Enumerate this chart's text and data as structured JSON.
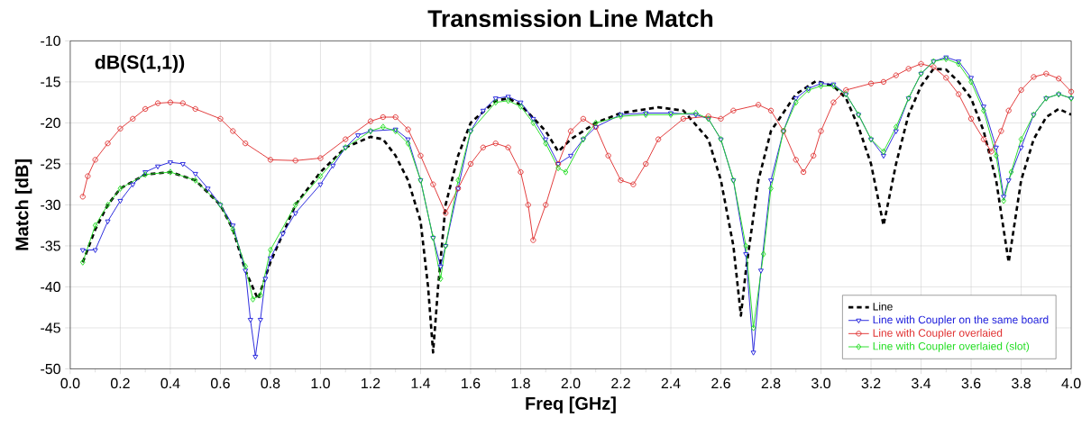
{
  "chart_data": {
    "type": "line",
    "title": "Transmission Line Match",
    "xlabel": "Freq [GHz]",
    "ylabel": "Match [dB]",
    "annotations": [
      "dB(S(1,1))"
    ],
    "xlim": [
      0,
      4
    ],
    "xticks": [
      {
        "value": 0,
        "label": "0.0"
      },
      0.2,
      0.4,
      0.6,
      0.8,
      {
        "value": 1,
        "label": "1.0"
      },
      1.2,
      1.4,
      1.6,
      1.8,
      {
        "value": 2,
        "label": "2.0"
      },
      2.2,
      2.4,
      2.6,
      2.8,
      {
        "value": 3,
        "label": "3.0"
      },
      3.2,
      3.4,
      3.6,
      3.8,
      {
        "value": 4,
        "label": "4.0"
      }
    ],
    "ylim": [
      -50,
      -10
    ],
    "yticks": [
      -50,
      -45,
      -40,
      -35,
      -30,
      -25,
      -20,
      -15,
      -10
    ],
    "grid": true,
    "legend": "bottom right",
    "series": [
      {
        "name": "Line",
        "color": "#000000",
        "line_style": "dashed",
        "marker": "none",
        "x": [
          0.05,
          0.1,
          0.15,
          0.2,
          0.3,
          0.4,
          0.5,
          0.6,
          0.65,
          0.7,
          0.75,
          0.8,
          0.9,
          1.0,
          1.1,
          1.2,
          1.25,
          1.3,
          1.35,
          1.4,
          1.43,
          1.45,
          1.47,
          1.5,
          1.55,
          1.6,
          1.7,
          1.75,
          1.8,
          1.9,
          1.95,
          2.0,
          2.1,
          2.2,
          2.35,
          2.45,
          2.55,
          2.6,
          2.65,
          2.68,
          2.7,
          2.75,
          2.8,
          2.9,
          2.98,
          3.05,
          3.1,
          3.15,
          3.2,
          3.25,
          3.3,
          3.35,
          3.4,
          3.45,
          3.5,
          3.55,
          3.6,
          3.65,
          3.7,
          3.75,
          3.8,
          3.85,
          3.9,
          3.95,
          4.0
        ],
        "values": [
          -37,
          -33,
          -30,
          -28,
          -26.3,
          -26,
          -27,
          -30,
          -33,
          -38,
          -41.5,
          -37,
          -30,
          -26,
          -23,
          -21.7,
          -22,
          -24,
          -27,
          -32,
          -40,
          -48,
          -40,
          -30,
          -24,
          -20,
          -17.3,
          -17,
          -17.8,
          -21,
          -23.5,
          -22,
          -20,
          -18.8,
          -18.1,
          -18.5,
          -22,
          -27,
          -35,
          -43.5,
          -38,
          -27,
          -21,
          -16.5,
          -14.9,
          -15.5,
          -17,
          -20.5,
          -25,
          -32.5,
          -25,
          -19,
          -15.5,
          -13.4,
          -13.5,
          -15,
          -17,
          -21,
          -27,
          -37,
          -27,
          -22,
          -19.3,
          -18.3,
          -19
        ]
      },
      {
        "name": "Line with Coupler on the same board",
        "color": "#1f1fdc",
        "line_style": "solid",
        "marker": "triangle",
        "x": [
          0.05,
          0.1,
          0.15,
          0.2,
          0.25,
          0.3,
          0.35,
          0.4,
          0.45,
          0.5,
          0.55,
          0.6,
          0.65,
          0.7,
          0.72,
          0.74,
          0.76,
          0.78,
          0.8,
          0.85,
          0.9,
          1.0,
          1.05,
          1.1,
          1.15,
          1.2,
          1.3,
          1.35,
          1.4,
          1.45,
          1.48,
          1.5,
          1.55,
          1.6,
          1.65,
          1.7,
          1.75,
          1.8,
          1.85,
          1.9,
          1.95,
          2.0,
          2.05,
          2.1,
          2.2,
          2.3,
          2.4,
          2.5,
          2.55,
          2.6,
          2.65,
          2.7,
          2.73,
          2.76,
          2.8,
          2.85,
          2.9,
          2.95,
          3.0,
          3.05,
          3.1,
          3.15,
          3.2,
          3.25,
          3.3,
          3.35,
          3.4,
          3.45,
          3.5,
          3.55,
          3.6,
          3.65,
          3.7,
          3.73,
          3.75,
          3.8,
          3.85,
          3.9,
          3.95,
          4.0
        ],
        "values": [
          -35.5,
          -35.5,
          -32,
          -29.5,
          -27.5,
          -26,
          -25.3,
          -24.8,
          -25,
          -26.2,
          -28,
          -30,
          -32.5,
          -38,
          -44,
          -48.5,
          -44,
          -39,
          -36.5,
          -33.5,
          -31,
          -27.5,
          -25.2,
          -23,
          -21.5,
          -21,
          -20.8,
          -22,
          -27,
          -34,
          -37.5,
          -35,
          -28,
          -21,
          -18.5,
          -17,
          -16.8,
          -17.5,
          -19.5,
          -22,
          -25,
          -24,
          -22,
          -20.5,
          -19,
          -18.8,
          -18.8,
          -19,
          -19.5,
          -22,
          -27,
          -36,
          -48,
          -38,
          -27,
          -21,
          -17,
          -15.8,
          -15.2,
          -15.3,
          -16.5,
          -19,
          -22,
          -24,
          -21,
          -17,
          -14,
          -12.5,
          -12,
          -12.5,
          -14.5,
          -18,
          -23,
          -29,
          -27,
          -23,
          -19,
          -17,
          -16.5,
          -17
        ]
      },
      {
        "name": "Line with Coupler overlaied",
        "color": "#e03030",
        "line_style": "solid",
        "marker": "circle",
        "x": [
          0.05,
          0.07,
          0.1,
          0.15,
          0.2,
          0.25,
          0.3,
          0.35,
          0.4,
          0.45,
          0.5,
          0.6,
          0.65,
          0.7,
          0.8,
          0.9,
          1.0,
          1.1,
          1.2,
          1.25,
          1.3,
          1.35,
          1.4,
          1.45,
          1.5,
          1.55,
          1.6,
          1.65,
          1.7,
          1.75,
          1.8,
          1.83,
          1.85,
          1.9,
          1.95,
          2.0,
          2.05,
          2.1,
          2.15,
          2.2,
          2.25,
          2.3,
          2.35,
          2.45,
          2.55,
          2.6,
          2.65,
          2.75,
          2.8,
          2.85,
          2.9,
          2.93,
          2.97,
          3.0,
          3.05,
          3.1,
          3.2,
          3.25,
          3.3,
          3.35,
          3.4,
          3.45,
          3.5,
          3.55,
          3.6,
          3.65,
          3.68,
          3.72,
          3.75,
          3.8,
          3.85,
          3.9,
          3.95,
          4.0
        ],
        "values": [
          -29,
          -26.5,
          -24.5,
          -22.5,
          -20.7,
          -19.5,
          -18.3,
          -17.6,
          -17.5,
          -17.6,
          -18.3,
          -19.5,
          -21,
          -22.5,
          -24.5,
          -24.6,
          -24.3,
          -22,
          -19.8,
          -19.3,
          -19.3,
          -20.8,
          -24,
          -27.5,
          -31,
          -28,
          -25,
          -23,
          -22.5,
          -23,
          -26,
          -30,
          -34.3,
          -30,
          -25,
          -21,
          -19.5,
          -20.5,
          -24,
          -27,
          -27.5,
          -25,
          -22,
          -19.5,
          -19.2,
          -19.5,
          -18.5,
          -17.8,
          -18.5,
          -21,
          -24.5,
          -26,
          -24,
          -21,
          -17.5,
          -16,
          -15.2,
          -15,
          -14.2,
          -13.4,
          -12.8,
          -13.2,
          -14.5,
          -16.5,
          -19.5,
          -22,
          -23.5,
          -21,
          -18.5,
          -16,
          -14.4,
          -14,
          -14.6,
          -16.2
        ]
      },
      {
        "name": "Line with Coupler overlaied (slot)",
        "color": "#22dd22",
        "line_style": "solid",
        "marker": "diamond",
        "x": [
          0.05,
          0.1,
          0.15,
          0.2,
          0.3,
          0.4,
          0.5,
          0.6,
          0.65,
          0.7,
          0.73,
          0.76,
          0.8,
          0.9,
          1.0,
          1.1,
          1.2,
          1.25,
          1.3,
          1.35,
          1.4,
          1.45,
          1.48,
          1.5,
          1.55,
          1.6,
          1.7,
          1.75,
          1.8,
          1.85,
          1.9,
          1.95,
          1.98,
          2.05,
          2.1,
          2.2,
          2.3,
          2.4,
          2.5,
          2.55,
          2.6,
          2.65,
          2.7,
          2.73,
          2.77,
          2.8,
          2.85,
          2.9,
          2.95,
          3.0,
          3.05,
          3.1,
          3.15,
          3.2,
          3.25,
          3.3,
          3.35,
          3.4,
          3.45,
          3.5,
          3.55,
          3.6,
          3.65,
          3.7,
          3.73,
          3.76,
          3.8,
          3.85,
          3.9,
          3.95,
          4.0
        ],
        "values": [
          -37,
          -32.5,
          -30,
          -28,
          -26.3,
          -26,
          -27,
          -30,
          -33,
          -37.5,
          -41.5,
          -41,
          -35.5,
          -30,
          -26.5,
          -23,
          -21,
          -20.5,
          -21,
          -22.5,
          -27,
          -34,
          -39,
          -35,
          -27,
          -21,
          -17.5,
          -17.3,
          -18,
          -20,
          -22.5,
          -25.5,
          -26,
          -22,
          -20,
          -19.2,
          -19,
          -19,
          -18.8,
          -19.5,
          -22,
          -27,
          -35,
          -45,
          -36,
          -28,
          -21,
          -17.5,
          -16,
          -15.5,
          -15.5,
          -16.5,
          -19,
          -22,
          -23.5,
          -20.5,
          -17,
          -14,
          -12.5,
          -12.2,
          -12.8,
          -15,
          -18.5,
          -24,
          -29.5,
          -26,
          -22,
          -19,
          -17,
          -16.5,
          -17
        ]
      }
    ]
  }
}
